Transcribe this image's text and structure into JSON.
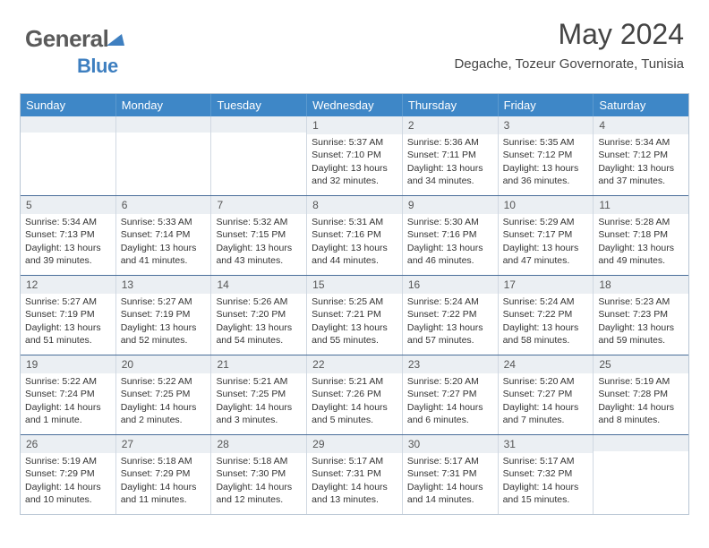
{
  "brand": {
    "name_part1": "General",
    "name_part2": "Blue"
  },
  "title": "May 2024",
  "location": "Degache, Tozeur Governorate, Tunisia",
  "theme": {
    "header_bg": "#3e87c7",
    "header_text": "#ffffff",
    "daynum_bg": "#ebeff3",
    "border": "#b8c5d3",
    "week_border": "#4a6e9a"
  },
  "weekdays": [
    "Sunday",
    "Monday",
    "Tuesday",
    "Wednesday",
    "Thursday",
    "Friday",
    "Saturday"
  ],
  "weeks": [
    [
      {
        "n": "",
        "sr": "",
        "ss": "",
        "dl": ""
      },
      {
        "n": "",
        "sr": "",
        "ss": "",
        "dl": ""
      },
      {
        "n": "",
        "sr": "",
        "ss": "",
        "dl": ""
      },
      {
        "n": "1",
        "sr": "Sunrise: 5:37 AM",
        "ss": "Sunset: 7:10 PM",
        "dl": "Daylight: 13 hours and 32 minutes."
      },
      {
        "n": "2",
        "sr": "Sunrise: 5:36 AM",
        "ss": "Sunset: 7:11 PM",
        "dl": "Daylight: 13 hours and 34 minutes."
      },
      {
        "n": "3",
        "sr": "Sunrise: 5:35 AM",
        "ss": "Sunset: 7:12 PM",
        "dl": "Daylight: 13 hours and 36 minutes."
      },
      {
        "n": "4",
        "sr": "Sunrise: 5:34 AM",
        "ss": "Sunset: 7:12 PM",
        "dl": "Daylight: 13 hours and 37 minutes."
      }
    ],
    [
      {
        "n": "5",
        "sr": "Sunrise: 5:34 AM",
        "ss": "Sunset: 7:13 PM",
        "dl": "Daylight: 13 hours and 39 minutes."
      },
      {
        "n": "6",
        "sr": "Sunrise: 5:33 AM",
        "ss": "Sunset: 7:14 PM",
        "dl": "Daylight: 13 hours and 41 minutes."
      },
      {
        "n": "7",
        "sr": "Sunrise: 5:32 AM",
        "ss": "Sunset: 7:15 PM",
        "dl": "Daylight: 13 hours and 43 minutes."
      },
      {
        "n": "8",
        "sr": "Sunrise: 5:31 AM",
        "ss": "Sunset: 7:16 PM",
        "dl": "Daylight: 13 hours and 44 minutes."
      },
      {
        "n": "9",
        "sr": "Sunrise: 5:30 AM",
        "ss": "Sunset: 7:16 PM",
        "dl": "Daylight: 13 hours and 46 minutes."
      },
      {
        "n": "10",
        "sr": "Sunrise: 5:29 AM",
        "ss": "Sunset: 7:17 PM",
        "dl": "Daylight: 13 hours and 47 minutes."
      },
      {
        "n": "11",
        "sr": "Sunrise: 5:28 AM",
        "ss": "Sunset: 7:18 PM",
        "dl": "Daylight: 13 hours and 49 minutes."
      }
    ],
    [
      {
        "n": "12",
        "sr": "Sunrise: 5:27 AM",
        "ss": "Sunset: 7:19 PM",
        "dl": "Daylight: 13 hours and 51 minutes."
      },
      {
        "n": "13",
        "sr": "Sunrise: 5:27 AM",
        "ss": "Sunset: 7:19 PM",
        "dl": "Daylight: 13 hours and 52 minutes."
      },
      {
        "n": "14",
        "sr": "Sunrise: 5:26 AM",
        "ss": "Sunset: 7:20 PM",
        "dl": "Daylight: 13 hours and 54 minutes."
      },
      {
        "n": "15",
        "sr": "Sunrise: 5:25 AM",
        "ss": "Sunset: 7:21 PM",
        "dl": "Daylight: 13 hours and 55 minutes."
      },
      {
        "n": "16",
        "sr": "Sunrise: 5:24 AM",
        "ss": "Sunset: 7:22 PM",
        "dl": "Daylight: 13 hours and 57 minutes."
      },
      {
        "n": "17",
        "sr": "Sunrise: 5:24 AM",
        "ss": "Sunset: 7:22 PM",
        "dl": "Daylight: 13 hours and 58 minutes."
      },
      {
        "n": "18",
        "sr": "Sunrise: 5:23 AM",
        "ss": "Sunset: 7:23 PM",
        "dl": "Daylight: 13 hours and 59 minutes."
      }
    ],
    [
      {
        "n": "19",
        "sr": "Sunrise: 5:22 AM",
        "ss": "Sunset: 7:24 PM",
        "dl": "Daylight: 14 hours and 1 minute."
      },
      {
        "n": "20",
        "sr": "Sunrise: 5:22 AM",
        "ss": "Sunset: 7:25 PM",
        "dl": "Daylight: 14 hours and 2 minutes."
      },
      {
        "n": "21",
        "sr": "Sunrise: 5:21 AM",
        "ss": "Sunset: 7:25 PM",
        "dl": "Daylight: 14 hours and 3 minutes."
      },
      {
        "n": "22",
        "sr": "Sunrise: 5:21 AM",
        "ss": "Sunset: 7:26 PM",
        "dl": "Daylight: 14 hours and 5 minutes."
      },
      {
        "n": "23",
        "sr": "Sunrise: 5:20 AM",
        "ss": "Sunset: 7:27 PM",
        "dl": "Daylight: 14 hours and 6 minutes."
      },
      {
        "n": "24",
        "sr": "Sunrise: 5:20 AM",
        "ss": "Sunset: 7:27 PM",
        "dl": "Daylight: 14 hours and 7 minutes."
      },
      {
        "n": "25",
        "sr": "Sunrise: 5:19 AM",
        "ss": "Sunset: 7:28 PM",
        "dl": "Daylight: 14 hours and 8 minutes."
      }
    ],
    [
      {
        "n": "26",
        "sr": "Sunrise: 5:19 AM",
        "ss": "Sunset: 7:29 PM",
        "dl": "Daylight: 14 hours and 10 minutes."
      },
      {
        "n": "27",
        "sr": "Sunrise: 5:18 AM",
        "ss": "Sunset: 7:29 PM",
        "dl": "Daylight: 14 hours and 11 minutes."
      },
      {
        "n": "28",
        "sr": "Sunrise: 5:18 AM",
        "ss": "Sunset: 7:30 PM",
        "dl": "Daylight: 14 hours and 12 minutes."
      },
      {
        "n": "29",
        "sr": "Sunrise: 5:17 AM",
        "ss": "Sunset: 7:31 PM",
        "dl": "Daylight: 14 hours and 13 minutes."
      },
      {
        "n": "30",
        "sr": "Sunrise: 5:17 AM",
        "ss": "Sunset: 7:31 PM",
        "dl": "Daylight: 14 hours and 14 minutes."
      },
      {
        "n": "31",
        "sr": "Sunrise: 5:17 AM",
        "ss": "Sunset: 7:32 PM",
        "dl": "Daylight: 14 hours and 15 minutes."
      },
      {
        "n": "",
        "sr": "",
        "ss": "",
        "dl": ""
      }
    ]
  ]
}
